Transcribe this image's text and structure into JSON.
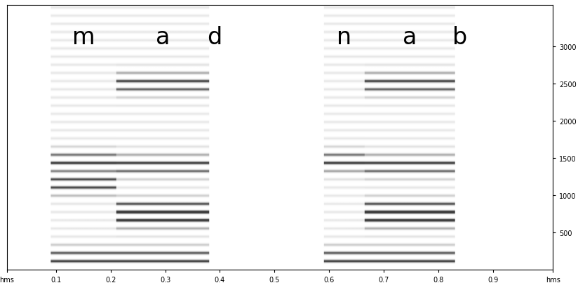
{
  "chart_data": {
    "type": "spectrogram",
    "xlim": [
      0.01,
      1.01
    ],
    "xticks": [
      {
        "value": 0.01,
        "label": "hms"
      },
      0.1,
      0.2,
      0.3,
      0.4,
      0.5,
      0.6,
      0.7,
      0.8,
      0.9,
      {
        "value": 1.01,
        "label": "hms"
      }
    ],
    "ylim": [
      0,
      3550
    ],
    "yticks": [
      500,
      1000,
      1500,
      2000,
      2500,
      3000
    ],
    "segments": [
      {
        "label": "m",
        "start": 0.09,
        "end": 0.21,
        "f0": 110,
        "formants": [
          150,
          1150,
          1450
        ]
      },
      {
        "label": "a",
        "start": 0.21,
        "end": 0.38,
        "f0": 110,
        "formants": [
          150,
          700,
          800,
          1400,
          2500
        ]
      },
      {
        "label": "d",
        "start": 0.38,
        "end": 0.4,
        "f0": null,
        "formants": []
      },
      {
        "label": "n",
        "start": 0.59,
        "end": 0.665,
        "f0": 110,
        "formants": [
          150,
          1450
        ]
      },
      {
        "label": "a",
        "start": 0.665,
        "end": 0.83,
        "f0": 110,
        "formants": [
          150,
          700,
          800,
          1400,
          2500
        ]
      },
      {
        "label": "b",
        "start": 0.83,
        "end": 0.85,
        "f0": null,
        "formants": []
      }
    ]
  }
}
